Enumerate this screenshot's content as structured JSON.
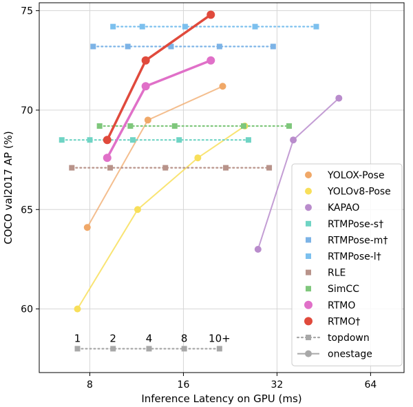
{
  "chart_data": {
    "type": "line",
    "xlabel": "Inference Latency on GPU (ms)",
    "ylabel": "COCO val2017 AP (%)",
    "x_scale": "log2",
    "xlim": [
      5.5,
      82
    ],
    "ylim": [
      56.8,
      75.4
    ],
    "x_ticks": [
      8,
      16,
      32,
      64
    ],
    "y_ticks": [
      60,
      65,
      70,
      75
    ],
    "grid": true,
    "legend_position": "lower-right",
    "series": [
      {
        "name": "YOLOX-Pose",
        "kind": "onestage",
        "color": "#f0a868",
        "line_alpha": 0.75,
        "x": [
          7.85,
          12.3,
          21.4
        ],
        "y": [
          64.1,
          69.5,
          71.2
        ]
      },
      {
        "name": "YOLOv8-Pose",
        "kind": "onestage",
        "color": "#f8df5a",
        "line_alpha": 0.85,
        "x": [
          7.3,
          11.4,
          17.8,
          25.2
        ],
        "y": [
          60.0,
          65.0,
          67.6,
          69.2
        ]
      },
      {
        "name": "KAPAO",
        "kind": "onestage",
        "color": "#b98ccc",
        "line_alpha": 0.85,
        "x": [
          27.8,
          36.1,
          50.6
        ],
        "y": [
          63.0,
          68.5,
          70.6
        ]
      },
      {
        "name": "RTMPose-s†",
        "kind": "topdown",
        "color": "#6fd4c4",
        "x": [
          6.5,
          8.0,
          11.0,
          15.5,
          25.9
        ],
        "y": [
          68.5,
          68.5,
          68.5,
          68.5,
          68.5
        ]
      },
      {
        "name": "RTMPose-m†",
        "kind": "topdown",
        "color": "#7cb3e6",
        "x": [
          8.2,
          10.6,
          14.6,
          20.9,
          31.1
        ],
        "y": [
          73.2,
          73.2,
          73.2,
          73.2,
          73.2
        ]
      },
      {
        "name": "RTMPose-l†",
        "kind": "topdown",
        "color": "#7cc0ee",
        "x": [
          9.5,
          11.8,
          16.2,
          27.2,
          42.8
        ],
        "y": [
          74.2,
          74.2,
          74.2,
          74.2,
          74.2
        ]
      },
      {
        "name": "RLE",
        "kind": "topdown",
        "color": "#b8938a",
        "x": [
          7.0,
          9.3,
          14.0,
          21.9,
          30.2
        ],
        "y": [
          67.1,
          67.1,
          67.1,
          67.1,
          67.1
        ]
      },
      {
        "name": "SimCC",
        "kind": "topdown",
        "color": "#7fc77c",
        "x": [
          8.6,
          10.8,
          15.0,
          25.0,
          35.0
        ],
        "y": [
          69.2,
          69.2,
          69.2,
          69.2,
          69.2
        ]
      },
      {
        "name": "RTMO",
        "kind": "onestage",
        "color": "#e070c8",
        "line_alpha": 1.0,
        "x": [
          9.1,
          12.1,
          19.6
        ],
        "y": [
          67.6,
          71.2,
          72.5
        ]
      },
      {
        "name": "RTMO†",
        "kind": "onestage",
        "color": "#e04a3c",
        "line_alpha": 1.0,
        "x": [
          9.1,
          12.1,
          19.6
        ],
        "y": [
          68.5,
          72.5,
          74.8
        ]
      }
    ],
    "people_scale": {
      "y": 58.0,
      "x": [
        7.3,
        9.5,
        12.4,
        16.1,
        20.9
      ],
      "labels": [
        "1",
        "2",
        "4",
        "8",
        "10+"
      ],
      "color": "#a8a8a8"
    },
    "legend_style_entries": [
      {
        "name": "topdown",
        "style": "dotted",
        "color": "#a8a8a8"
      },
      {
        "name": "onestage",
        "style": "solid",
        "color": "#a8a8a8"
      }
    ]
  }
}
